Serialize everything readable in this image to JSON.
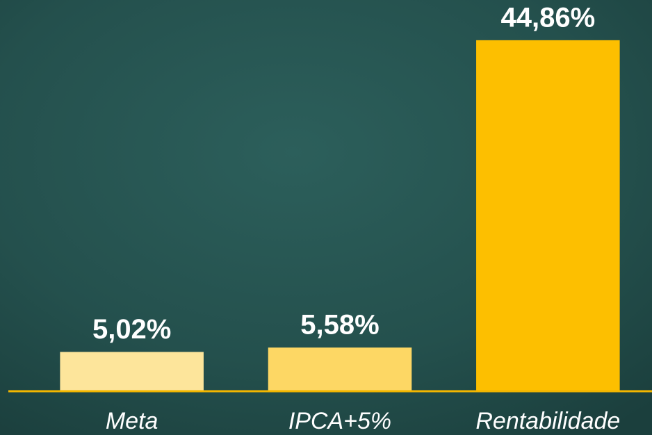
{
  "chart_data": {
    "type": "bar",
    "categories": [
      "Meta",
      "IPCA+5%",
      "Rentabilidade"
    ],
    "values": [
      5.02,
      5.58,
      44.86
    ],
    "value_labels": [
      "5,02%",
      "5,58%",
      "44,86%"
    ],
    "colors": [
      "#fde59b",
      "#fdd764",
      "#fdbf00"
    ],
    "ylim": [
      0,
      50
    ],
    "grid": false
  }
}
